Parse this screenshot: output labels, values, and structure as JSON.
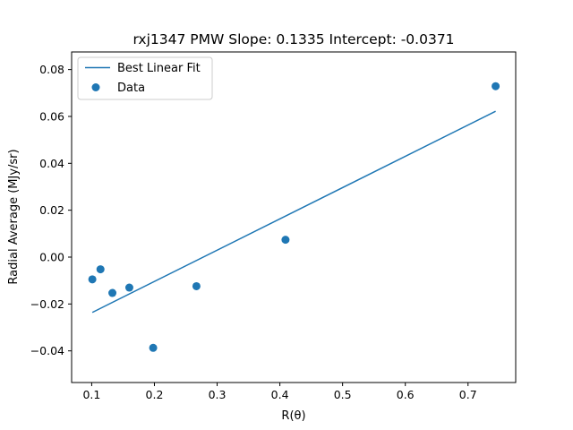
{
  "chart_data": {
    "type": "scatter",
    "title": "rxj1347  PMW  Slope: 0.1335  Intercept: -0.0371",
    "xlabel": "R(θ)",
    "ylabel": "Radial Average (MJy/sr)",
    "xlim": [
      0.068,
      0.776
    ],
    "ylim": [
      -0.0535,
      0.0875
    ],
    "xticks": [
      0.1,
      0.2,
      0.3,
      0.4,
      0.5,
      0.6,
      0.7
    ],
    "xtick_labels": [
      "0.1",
      "0.2",
      "0.3",
      "0.4",
      "0.5",
      "0.6",
      "0.7"
    ],
    "yticks": [
      -0.04,
      -0.02,
      0.0,
      0.02,
      0.04,
      0.06,
      0.08
    ],
    "ytick_labels": [
      "−0.04",
      "−0.02",
      "0.00",
      "0.02",
      "0.04",
      "0.06",
      "0.08"
    ],
    "grid": false,
    "legend_position": "upper-left",
    "series": [
      {
        "name": "Best Linear Fit",
        "kind": "line",
        "color": "#1f77b4",
        "slope": 0.1335,
        "intercept": -0.0371,
        "x": [
          0.101,
          0.744
        ],
        "y": [
          -0.0236,
          0.0622
        ]
      },
      {
        "name": "Data",
        "kind": "scatter",
        "color": "#1f77b4",
        "x": [
          0.101,
          0.114,
          0.133,
          0.16,
          0.198,
          0.267,
          0.409,
          0.744
        ],
        "y": [
          -0.0095,
          -0.0052,
          -0.0153,
          -0.013,
          -0.0387,
          -0.0124,
          0.0074,
          0.0729
        ]
      }
    ]
  }
}
